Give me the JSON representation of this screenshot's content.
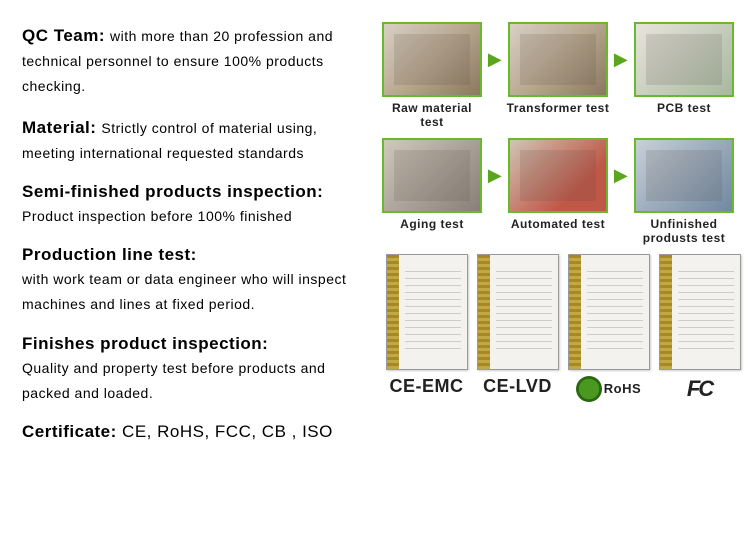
{
  "left": {
    "s1": {
      "title": "QC Team:",
      "body": " with more than 20 profession and technical personnel to ensure 100% products checking."
    },
    "s2": {
      "title": "Material:",
      "body": " Strictly control of material using, meeting international requested standards"
    },
    "s3": {
      "title": "Semi-finished products inspection:",
      "body": "Product inspection before 100% finished"
    },
    "s4": {
      "title": "Production line test:",
      "body": "with work team or data engineer who will inspect machines and lines at fixed period."
    },
    "s5": {
      "title": "Finishes product inspection:",
      "body": "Quality and property test before products and packed and loaded."
    },
    "cert": {
      "title": "Certificate:",
      "body": " CE, RoHS, FCC, CB , ISO"
    }
  },
  "process": {
    "row1": [
      {
        "label": "Raw material test",
        "imgClass": ""
      },
      {
        "label": "Transformer test",
        "imgClass": ""
      },
      {
        "label": "PCB test",
        "imgClass": "pcb"
      }
    ],
    "row2": [
      {
        "label": "Aging test",
        "imgClass": "aging"
      },
      {
        "label": "Automated test",
        "imgClass": "auto"
      },
      {
        "label": "Unfinished produsts test",
        "imgClass": "unfin"
      }
    ]
  },
  "certs": [
    {
      "label": "CE-EMC",
      "logo": "text"
    },
    {
      "label": "CE-LVD",
      "logo": "text"
    },
    {
      "label": "RoHS",
      "logo": "rohs"
    },
    {
      "label": "FC",
      "logo": "fcc"
    }
  ],
  "colors": {
    "border": "#6ab82e",
    "arrow": "#5aa61e"
  }
}
